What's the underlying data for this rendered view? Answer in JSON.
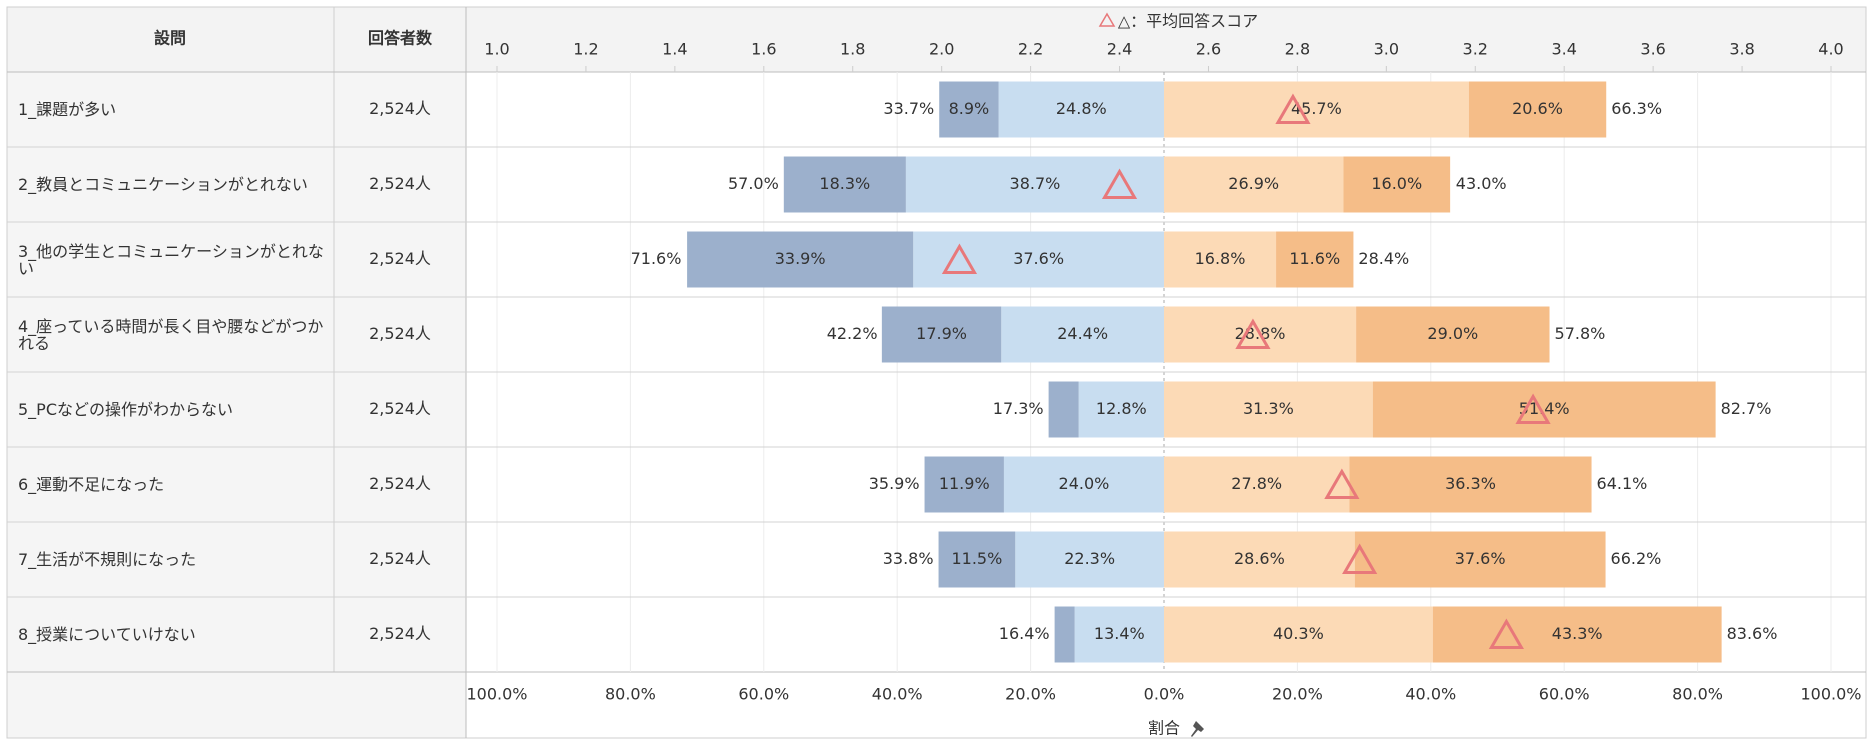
{
  "table": {
    "headers": [
      "設問",
      "回答者数"
    ]
  },
  "chart_data": {
    "type": "diverging_bar",
    "legend_note": "△：平均回答スコア",
    "x_label": "割合",
    "categories": [
      "1_課題が多い",
      "2_教員とコミュニケーションがとれない",
      "3_他の学生とコミュニケーションがとれない",
      "4_座っている時間が長く目や腰などがつかれる",
      "5_PCなどの操作がわからない",
      "6_運動不足になった",
      "7_生活が不規則になった",
      "8_授業についていけない"
    ],
    "respondents": [
      "2,524人",
      "2,524人",
      "2,524人",
      "2,524人",
      "2,524人",
      "2,524人",
      "2,524人",
      "2,524人"
    ],
    "series": [
      {
        "color": "#9cb0cc",
        "side": "left",
        "values": [
          8.9,
          18.3,
          33.9,
          17.9,
          4.5,
          11.9,
          11.5,
          3.0
        ],
        "value_labels": [
          "8.9%",
          "18.3%",
          "33.9%",
          "17.9%",
          null,
          "11.9%",
          "11.5%",
          null
        ]
      },
      {
        "color": "#c8ddf0",
        "side": "left",
        "values": [
          24.8,
          38.7,
          37.6,
          24.4,
          12.8,
          24.0,
          22.3,
          13.4
        ],
        "value_labels": [
          "24.8%",
          "38.7%",
          "37.6%",
          "24.4%",
          "12.8%",
          "24.0%",
          "22.3%",
          "13.4%"
        ]
      },
      {
        "color": "#fcdab6",
        "side": "right",
        "values": [
          45.7,
          26.9,
          16.8,
          28.8,
          31.3,
          27.8,
          28.6,
          40.3
        ],
        "value_labels": [
          "45.7%",
          "26.9%",
          "16.8%",
          "28.8%",
          "31.3%",
          "27.8%",
          "28.6%",
          "40.3%"
        ]
      },
      {
        "color": "#f5bd88",
        "side": "right",
        "values": [
          20.6,
          16.0,
          11.6,
          29.0,
          51.4,
          36.3,
          37.6,
          43.3
        ],
        "value_labels": [
          "20.6%",
          "16.0%",
          "11.6%",
          "29.0%",
          "51.4%",
          "36.3%",
          "37.6%",
          "43.3%"
        ]
      }
    ],
    "totals_left": {
      "values": [
        33.7,
        57.0,
        71.6,
        42.2,
        17.3,
        35.9,
        33.8,
        16.4
      ],
      "value_labels": [
        "33.7%",
        "57.0%",
        "71.6%",
        "42.2%",
        "17.3%",
        "35.9%",
        "33.8%",
        "16.4%"
      ]
    },
    "totals_right": {
      "values": [
        66.3,
        43.0,
        28.4,
        57.8,
        82.7,
        64.1,
        66.2,
        83.6
      ],
      "value_labels": [
        "66.3%",
        "43.0%",
        "28.4%",
        "57.8%",
        "82.7%",
        "64.1%",
        "66.2%",
        "83.6%"
      ]
    },
    "scores": [
      2.79,
      2.4,
      2.04,
      2.7,
      3.33,
      2.9,
      2.94,
      3.27
    ],
    "score_color": "#e8787a",
    "xlim": [
      -100,
      100
    ],
    "xticks": [
      {
        "value": -100,
        "label": "100.0%"
      },
      {
        "value": -80,
        "label": "80.0%"
      },
      {
        "value": -60,
        "label": "60.0%"
      },
      {
        "value": -40,
        "label": "40.0%"
      },
      {
        "value": -20,
        "label": "20.0%"
      },
      {
        "value": 0,
        "label": "0.0%"
      },
      {
        "value": 20,
        "label": "20.0%"
      },
      {
        "value": 40,
        "label": "40.0%"
      },
      {
        "value": 60,
        "label": "60.0%"
      },
      {
        "value": 80,
        "label": "80.0%"
      },
      {
        "value": 100,
        "label": "100.0%"
      }
    ],
    "score_lim": [
      1,
      4
    ],
    "score_ticks": [
      {
        "value": 1.0,
        "label": "1.0"
      },
      {
        "value": 1.2,
        "label": "1.2"
      },
      {
        "value": 1.4,
        "label": "1.4"
      },
      {
        "value": 1.6,
        "label": "1.6"
      },
      {
        "value": 1.8,
        "label": "1.8"
      },
      {
        "value": 2.0,
        "label": "2.0"
      },
      {
        "value": 2.2,
        "label": "2.2"
      },
      {
        "value": 2.4,
        "label": "2.4"
      },
      {
        "value": 2.6,
        "label": "2.6"
      },
      {
        "value": 2.8,
        "label": "2.8"
      },
      {
        "value": 3.0,
        "label": "3.0"
      },
      {
        "value": 3.2,
        "label": "3.2"
      },
      {
        "value": 3.4,
        "label": "3.4"
      },
      {
        "value": 3.6,
        "label": "3.6"
      },
      {
        "value": 3.8,
        "label": "3.8"
      },
      {
        "value": 4.0,
        "label": "4.0"
      }
    ],
    "grid": true
  }
}
